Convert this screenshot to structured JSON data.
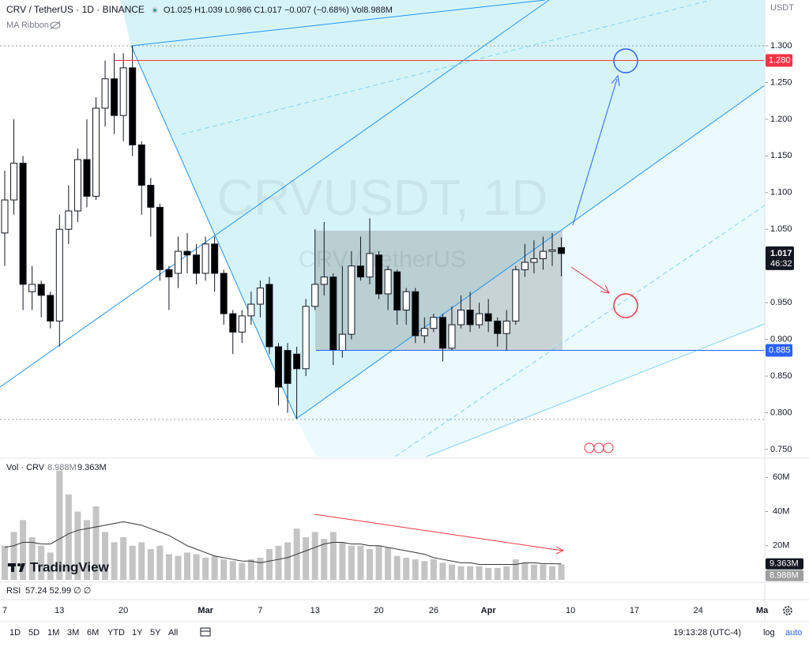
{
  "header": {
    "symbol": "CRV / TetherUS · 1D · BINANCE",
    "ohlc": "O1.025 H1.039 L0.986 C1.017 −0.007 (−0.68%) Vol8.988M",
    "indicator": "MA Ribbon"
  },
  "watermark": {
    "title": "CRVUSDT, 1D",
    "subtitle": "CRV / TetherUS"
  },
  "logo": "TradingView",
  "rsi": {
    "name": "RSI",
    "values": "57.24 52.99 ∅ ∅"
  },
  "toolbar": {
    "ranges": [
      "1D",
      "5D",
      "1M",
      "3M",
      "6M",
      "YTD",
      "1Y",
      "5Y",
      "All"
    ],
    "clock": "19:13:28 (UTC-4)",
    "log": "log",
    "auto": "auto"
  },
  "chart_data": [
    {
      "type": "candlestick",
      "currency": "USDT",
      "open": [
        1.045,
        1.09,
        1.14,
        0.965,
        0.975,
        0.96,
        0.925,
        1.05,
        1.075,
        1.145,
        1.095,
        1.215,
        1.255,
        1.205,
        1.27,
        1.165,
        1.11,
        1.08,
        0.995,
        0.99,
        1.02,
        1.015,
        0.99,
        1.03,
        0.99,
        0.935,
        0.91,
        0.932,
        0.948,
        0.975,
        0.89,
        0.885,
        0.88,
        0.86,
        0.945,
        0.975,
        0.985,
        0.885,
        0.907,
        1.0,
        0.985,
        1.015,
        0.962,
        0.992,
        0.94,
        0.965,
        0.905,
        0.915,
        0.93,
        0.888,
        0.92,
        0.94,
        0.92,
        0.935,
        0.925,
        0.908,
        0.925,
        0.995,
        1.005,
        1.01,
        1.02,
        1.025
      ],
      "high": [
        1.13,
        1.2,
        1.15,
        1.0,
        0.98,
        0.965,
        1.07,
        1.11,
        1.16,
        1.2,
        1.23,
        1.28,
        1.29,
        1.29,
        1.3,
        1.17,
        1.12,
        1.085,
        1.0,
        1.04,
        1.045,
        1.03,
        1.04,
        1.04,
        0.995,
        0.94,
        0.94,
        0.965,
        0.98,
        0.985,
        0.895,
        0.895,
        0.89,
        0.955,
        1.05,
        1.06,
        0.99,
        1.0,
        1.02,
        1.04,
        1.065,
        1.02,
        1.0,
        0.995,
        0.97,
        0.97,
        0.93,
        0.935,
        0.935,
        0.945,
        0.96,
        0.965,
        0.95,
        0.955,
        0.93,
        0.94,
        1.0,
        1.03,
        1.035,
        1.04,
        1.045,
        1.039
      ],
      "low": [
        1.0,
        1.07,
        0.94,
        0.94,
        0.93,
        0.915,
        0.89,
        1.03,
        1.06,
        1.08,
        1.09,
        1.19,
        1.18,
        1.17,
        1.15,
        1.07,
        1.04,
        0.98,
        0.94,
        0.97,
        0.99,
        0.975,
        0.98,
        0.965,
        0.92,
        0.88,
        0.895,
        0.92,
        0.93,
        0.88,
        0.81,
        0.8,
        0.792,
        0.85,
        0.94,
        0.96,
        0.865,
        0.875,
        0.9,
        0.98,
        0.975,
        0.955,
        0.94,
        0.92,
        0.92,
        0.895,
        0.895,
        0.91,
        0.87,
        0.885,
        0.915,
        0.91,
        0.915,
        0.91,
        0.89,
        0.885,
        0.92,
        0.985,
        0.99,
        0.995,
        1.0,
        0.986
      ],
      "close": [
        1.09,
        1.14,
        0.975,
        0.975,
        0.96,
        0.925,
        1.05,
        1.075,
        1.145,
        1.095,
        1.215,
        1.255,
        1.205,
        1.27,
        1.165,
        1.11,
        1.08,
        0.995,
        0.985,
        1.02,
        1.015,
        0.99,
        1.03,
        0.99,
        0.935,
        0.91,
        0.932,
        0.948,
        0.97,
        0.89,
        0.835,
        0.84,
        0.86,
        0.945,
        0.975,
        0.985,
        0.885,
        0.907,
        1.0,
        0.985,
        1.017,
        0.962,
        0.995,
        0.94,
        0.965,
        0.905,
        0.915,
        0.93,
        0.888,
        0.92,
        0.94,
        0.92,
        0.935,
        0.925,
        0.908,
        0.925,
        0.995,
        1.005,
        1.01,
        1.02,
        1.022,
        1.017
      ],
      "xlim": [
        -0.52,
        83.29
      ],
      "xticks": [
        {
          "value": 0,
          "label": "7"
        },
        {
          "value": 6,
          "label": "13"
        },
        {
          "value": 13,
          "label": "20"
        },
        {
          "value": 22,
          "label": "Mar"
        },
        {
          "value": 28,
          "label": "7"
        },
        {
          "value": 34,
          "label": "13"
        },
        {
          "value": 41,
          "label": "20"
        },
        {
          "value": 47,
          "label": "26"
        },
        {
          "value": 53,
          "label": "Apr"
        },
        {
          "value": 62,
          "label": "10"
        },
        {
          "value": 69,
          "label": "17"
        },
        {
          "value": 76,
          "label": "24"
        },
        {
          "value": 83,
          "label": "Ma"
        }
      ],
      "ylim": [
        0.7403,
        1.3624
      ],
      "yticks": [
        {
          "value": 1.3,
          "label": "1.300"
        },
        {
          "value": 1.25,
          "label": "1.250"
        },
        {
          "value": 1.2,
          "label": "1.200"
        },
        {
          "value": 1.15,
          "label": "1.150"
        },
        {
          "value": 1.1,
          "label": "1.100"
        },
        {
          "value": 1.05,
          "label": "1.050"
        },
        {
          "value": 0.95,
          "label": "0.950"
        },
        {
          "value": 0.9,
          "label": "0.900"
        },
        {
          "value": 0.85,
          "label": "0.850"
        },
        {
          "value": 0.8,
          "label": "0.800"
        },
        {
          "value": 0.75,
          "label": "0.750"
        }
      ],
      "up_color": "#ffffff",
      "down_color": "#000000",
      "price_lines": [
        {
          "value": 1.28,
          "label": "1.280",
          "color": "#f23645"
        },
        {
          "value": 0.885,
          "label": "0.885",
          "color": "#2962ff"
        }
      ],
      "last_price": {
        "value": 1.017,
        "label": "1.017",
        "countdown": "46:32"
      }
    },
    {
      "type": "bar",
      "title": "Vol · CRV",
      "values": [
        20,
        28,
        35,
        25,
        20,
        16,
        64,
        50,
        40,
        35,
        43,
        28,
        22,
        25,
        20,
        22,
        18,
        20,
        15,
        14,
        16,
        15,
        13,
        14,
        12,
        11,
        10,
        12,
        13,
        18,
        20,
        22,
        30,
        25,
        28,
        24,
        28,
        22,
        20,
        20,
        18,
        20,
        19,
        14,
        13,
        12,
        11,
        12,
        10,
        9,
        8,
        8,
        8,
        7,
        7,
        8,
        12,
        10,
        9,
        9,
        8,
        8.988
      ],
      "ma": [
        19,
        20,
        22,
        22,
        21,
        21,
        24,
        27,
        29,
        30,
        31,
        32,
        33,
        34,
        33,
        32,
        30,
        28,
        26,
        23,
        20,
        18,
        16,
        14,
        13,
        12,
        11,
        11,
        10,
        11,
        12,
        13,
        15,
        17,
        19,
        21,
        22,
        22,
        21,
        21,
        20,
        20,
        19,
        18,
        17,
        16,
        15,
        13,
        12,
        11,
        10,
        10,
        9,
        9,
        9,
        9,
        9,
        10,
        10,
        9.5,
        9.4,
        9.363
      ],
      "value_label": "8.988M",
      "ma_label": "9.363M",
      "color": "#c4c4c4",
      "ma_color": "#333333",
      "ylim": [
        0,
        69.4
      ],
      "yticks": [
        {
          "value": 60,
          "label": "60M"
        },
        {
          "value": 40,
          "label": "40M"
        },
        {
          "value": 20,
          "label": "20M"
        }
      ]
    }
  ]
}
